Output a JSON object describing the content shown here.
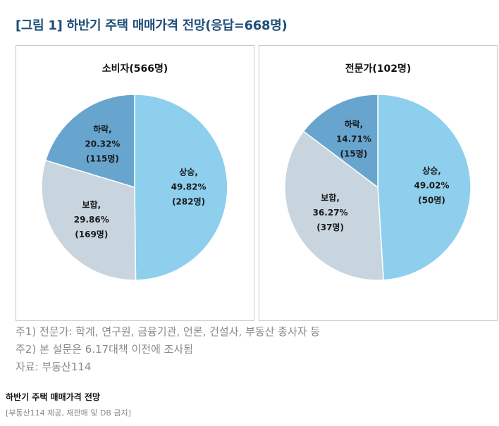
{
  "figure_title": "[그림 1] 하반기 주택 매매가격 전망(응답=668명)",
  "chart_data": [
    {
      "type": "pie",
      "title": "소비자(566명)",
      "slices": [
        {
          "name": "상승",
          "percent": 49.82,
          "count": 282,
          "label": [
            "상승,",
            "49.82%",
            "(282명)"
          ],
          "color": "#8ecfee"
        },
        {
          "name": "보합",
          "percent": 29.86,
          "count": 169,
          "label": [
            "보합,",
            "29.86%",
            "(169명)"
          ],
          "color": "#c8d4de"
        },
        {
          "name": "하락",
          "percent": 20.32,
          "count": 115,
          "label": [
            "하락,",
            "20.32%",
            "(115명)"
          ],
          "color": "#67a5cf"
        }
      ]
    },
    {
      "type": "pie",
      "title": "전문가(102명)",
      "slices": [
        {
          "name": "상승",
          "percent": 49.02,
          "count": 50,
          "label": [
            "상승,",
            "49.02%",
            "(50명)"
          ],
          "color": "#8ecfee"
        },
        {
          "name": "보합",
          "percent": 36.27,
          "count": 37,
          "label": [
            "보합,",
            "36.27%",
            "(37명)"
          ],
          "color": "#c8d4de"
        },
        {
          "name": "하락",
          "percent": 14.71,
          "count": 15,
          "label": [
            "하락,",
            "14.71%",
            "(15명)"
          ],
          "color": "#67a5cf"
        }
      ]
    }
  ],
  "notes": [
    "주1) 전문가: 학계, 연구원, 금융기관, 언론, 건설사, 부동산 종사자 등",
    "주2) 본 설문은 6.17대책 이전에 조사됨",
    "자료: 부동산114"
  ],
  "caption": "하반기 주택 매매가격 전망",
  "credit": "[부동산114 제공, 재판매 및 DB 금지]"
}
